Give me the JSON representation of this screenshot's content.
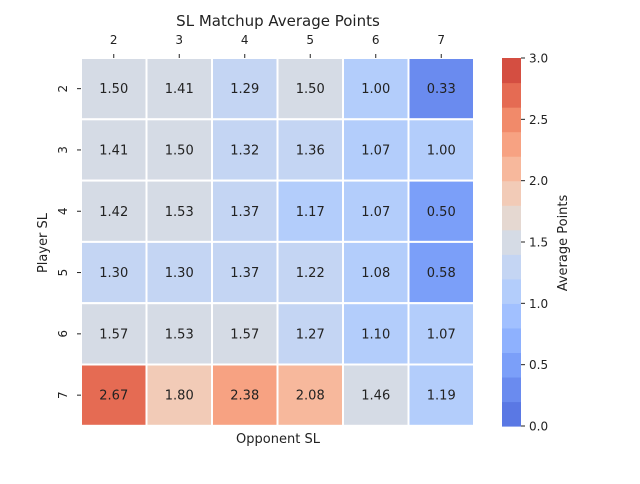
{
  "chart_data": {
    "type": "heatmap",
    "title": "SL Matchup Average Points",
    "xlabel": "Opponent SL",
    "ylabel": "Player SL",
    "x_categories": [
      "2",
      "3",
      "4",
      "5",
      "6",
      "7"
    ],
    "y_categories": [
      "2",
      "3",
      "4",
      "5",
      "6",
      "7"
    ],
    "x_tick_position": "top",
    "values": [
      [
        1.5,
        1.41,
        1.29,
        1.5,
        1.0,
        0.33
      ],
      [
        1.41,
        1.5,
        1.32,
        1.36,
        1.07,
        1.0
      ],
      [
        1.42,
        1.53,
        1.37,
        1.17,
        1.07,
        0.5
      ],
      [
        1.3,
        1.3,
        1.37,
        1.22,
        1.08,
        0.58
      ],
      [
        1.57,
        1.53,
        1.57,
        1.27,
        1.1,
        1.07
      ],
      [
        2.67,
        1.8,
        2.38,
        2.08,
        1.46,
        1.19
      ]
    ],
    "value_format": "0.00",
    "colorbar": {
      "label": "Average Points",
      "range": [
        0.0,
        3.0
      ],
      "ticks": [
        "0.0",
        "0.5",
        "1.0",
        "1.5",
        "2.0",
        "2.5",
        "3.0"
      ],
      "bin_width": 0.25,
      "palette": [
        "#5a78e4",
        "#6a8bef",
        "#7b9ff9",
        "#8eb1fe",
        "#a1c0ff",
        "#b3cdfb",
        "#c4d5f3",
        "#d5dbe5",
        "#e5d8d1",
        "#f2cbb7",
        "#f7b89c",
        "#f7a282",
        "#f18a6a",
        "#e56b53",
        "#d44e41"
      ]
    },
    "cell_border_color": "#ffffff",
    "label_dark_color": "#262626",
    "label_light_color": "#ffffff"
  }
}
